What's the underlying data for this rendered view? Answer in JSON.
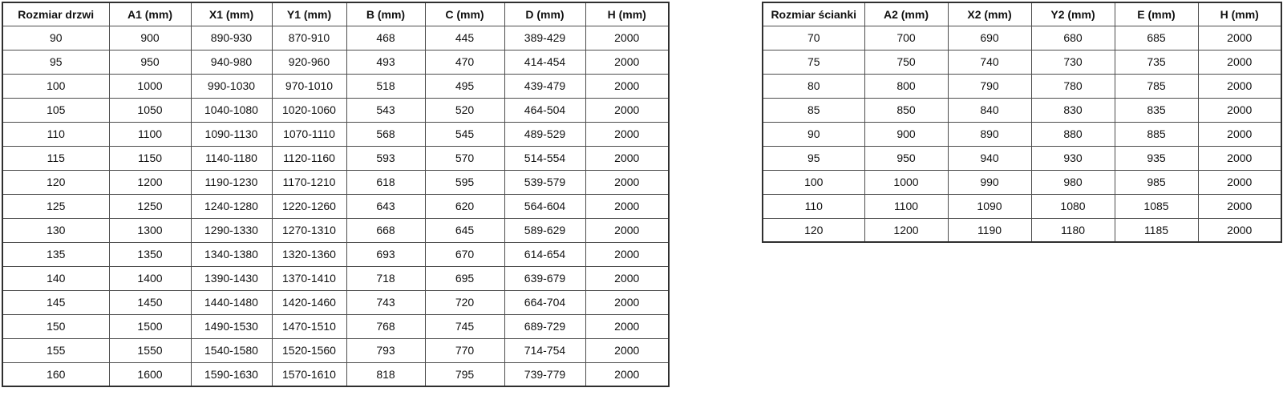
{
  "colors": {
    "background": "#ffffff",
    "table_border": "#2f2f2f",
    "cell_border": "#4d4d4d",
    "text": "#111111"
  },
  "chart_data": [
    {
      "type": "table",
      "title": "Rozmiar drzwi",
      "headers": [
        "Rozmiar drzwi",
        "A1 (mm)",
        "X1 (mm)",
        "Y1 (mm)",
        "B (mm)",
        "C (mm)",
        "D (mm)",
        "H (mm)"
      ],
      "rows": [
        [
          "90",
          "900",
          "890-930",
          "870-910",
          "468",
          "445",
          "389-429",
          "2000"
        ],
        [
          "95",
          "950",
          "940-980",
          "920-960",
          "493",
          "470",
          "414-454",
          "2000"
        ],
        [
          "100",
          "1000",
          "990-1030",
          "970-1010",
          "518",
          "495",
          "439-479",
          "2000"
        ],
        [
          "105",
          "1050",
          "1040-1080",
          "1020-1060",
          "543",
          "520",
          "464-504",
          "2000"
        ],
        [
          "110",
          "1100",
          "1090-1130",
          "1070-1110",
          "568",
          "545",
          "489-529",
          "2000"
        ],
        [
          "115",
          "1150",
          "1140-1180",
          "1120-1160",
          "593",
          "570",
          "514-554",
          "2000"
        ],
        [
          "120",
          "1200",
          "1190-1230",
          "1170-1210",
          "618",
          "595",
          "539-579",
          "2000"
        ],
        [
          "125",
          "1250",
          "1240-1280",
          "1220-1260",
          "643",
          "620",
          "564-604",
          "2000"
        ],
        [
          "130",
          "1300",
          "1290-1330",
          "1270-1310",
          "668",
          "645",
          "589-629",
          "2000"
        ],
        [
          "135",
          "1350",
          "1340-1380",
          "1320-1360",
          "693",
          "670",
          "614-654",
          "2000"
        ],
        [
          "140",
          "1400",
          "1390-1430",
          "1370-1410",
          "718",
          "695",
          "639-679",
          "2000"
        ],
        [
          "145",
          "1450",
          "1440-1480",
          "1420-1460",
          "743",
          "720",
          "664-704",
          "2000"
        ],
        [
          "150",
          "1500",
          "1490-1530",
          "1470-1510",
          "768",
          "745",
          "689-729",
          "2000"
        ],
        [
          "155",
          "1550",
          "1540-1580",
          "1520-1560",
          "793",
          "770",
          "714-754",
          "2000"
        ],
        [
          "160",
          "1600",
          "1590-1630",
          "1570-1610",
          "818",
          "795",
          "739-779",
          "2000"
        ]
      ]
    },
    {
      "type": "table",
      "title": "Rozmiar ścianki",
      "headers": [
        "Rozmiar ścianki",
        "A2 (mm)",
        "X2 (mm)",
        "Y2 (mm)",
        "E (mm)",
        "H (mm)"
      ],
      "rows": [
        [
          "70",
          "700",
          "690",
          "680",
          "685",
          "2000"
        ],
        [
          "75",
          "750",
          "740",
          "730",
          "735",
          "2000"
        ],
        [
          "80",
          "800",
          "790",
          "780",
          "785",
          "2000"
        ],
        [
          "85",
          "850",
          "840",
          "830",
          "835",
          "2000"
        ],
        [
          "90",
          "900",
          "890",
          "880",
          "885",
          "2000"
        ],
        [
          "95",
          "950",
          "940",
          "930",
          "935",
          "2000"
        ],
        [
          "100",
          "1000",
          "990",
          "980",
          "985",
          "2000"
        ],
        [
          "110",
          "1100",
          "1090",
          "1080",
          "1085",
          "2000"
        ],
        [
          "120",
          "1200",
          "1190",
          "1180",
          "1185",
          "2000"
        ]
      ]
    }
  ]
}
